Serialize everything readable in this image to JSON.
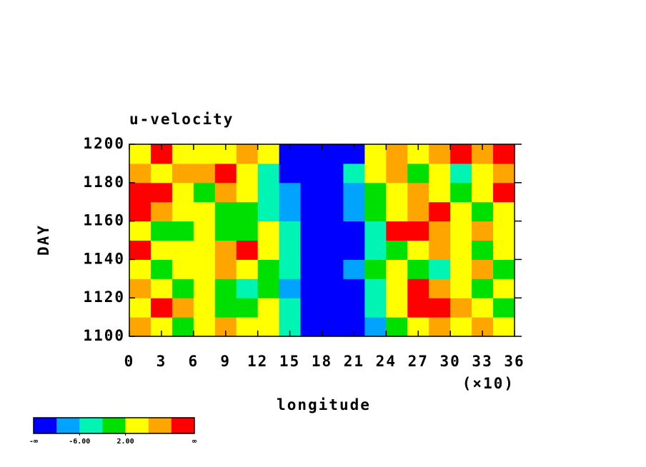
{
  "chart_data": {
    "type": "contour",
    "title": "u-velocity",
    "xlabel": "longitude",
    "ylabel": "DAY",
    "x_multiplier": "(×10)",
    "xlim": [
      0,
      36
    ],
    "xticks": [
      0,
      3,
      6,
      9,
      12,
      15,
      18,
      21,
      24,
      27,
      30,
      33,
      36
    ],
    "ylim": [
      1100,
      1200
    ],
    "yticks": [
      1100,
      1120,
      1140,
      1160,
      1180,
      1200
    ],
    "x": [
      1,
      3,
      5,
      7,
      9,
      11,
      13,
      15,
      17,
      19,
      21,
      23,
      25,
      27,
      29,
      31,
      33,
      35
    ],
    "y": [
      1105,
      1115,
      1125,
      1135,
      1145,
      1155,
      1165,
      1175,
      1185,
      1195
    ],
    "z": [
      [
        8,
        4,
        0,
        4,
        6,
        3,
        2,
        -4,
        -12,
        -12,
        -12,
        -8,
        0,
        4,
        6,
        3,
        7,
        4
      ],
      [
        4,
        12,
        8,
        3,
        -1,
        0,
        2,
        -6,
        -12,
        -12,
        -12,
        -4,
        2,
        12,
        11,
        7,
        3,
        0
      ],
      [
        7,
        3,
        1,
        4,
        0,
        -3,
        -1,
        -8,
        -12,
        -12,
        -11,
        -4,
        5,
        10,
        8,
        4,
        0,
        5
      ],
      [
        4,
        0,
        5,
        3,
        7,
        5,
        -1,
        -6,
        -12,
        -12,
        -9,
        -1,
        3,
        0,
        -3,
        4,
        7,
        1
      ],
      [
        12,
        5,
        2,
        4,
        8,
        11,
        4,
        -4,
        -12,
        -12,
        -11,
        -4,
        1,
        4,
        8,
        5,
        -2,
        3
      ],
      [
        3,
        -1,
        0,
        3,
        -2,
        0,
        3,
        -3,
        -11,
        -12,
        -11,
        -5,
        11,
        11,
        8,
        4,
        7,
        3
      ],
      [
        12,
        8,
        4,
        4,
        0,
        -1,
        -4,
        -8,
        -12,
        -12,
        -8,
        -2,
        3,
        9,
        12,
        3,
        0,
        4
      ],
      [
        11,
        12,
        4,
        1,
        6,
        3,
        -4,
        -8,
        -12,
        -12,
        -10,
        1,
        2,
        6,
        3,
        0,
        5,
        11
      ],
      [
        8,
        4,
        9,
        7,
        12,
        3,
        -3,
        -12,
        -12,
        -12,
        -6,
        3,
        8,
        0,
        4,
        -3,
        2,
        6
      ],
      [
        4,
        11,
        5,
        3,
        2,
        7,
        5,
        -12,
        -12,
        -12,
        -12,
        5,
        9,
        4,
        7,
        12,
        6,
        12
      ]
    ],
    "levels": [
      -10,
      -6,
      -2,
      2,
      6,
      10
    ],
    "colors": [
      "#0000ff",
      "#00a4ff",
      "#00f5b4",
      "#00e000",
      "#ffff00",
      "#ffa500",
      "#ff0000"
    ],
    "colorbar": {
      "low_label": "-∞",
      "high_label": "∞",
      "ticks": [
        {
          "value": -6,
          "label": "-6.00"
        },
        {
          "value": 2,
          "label": "2.00"
        }
      ]
    }
  }
}
